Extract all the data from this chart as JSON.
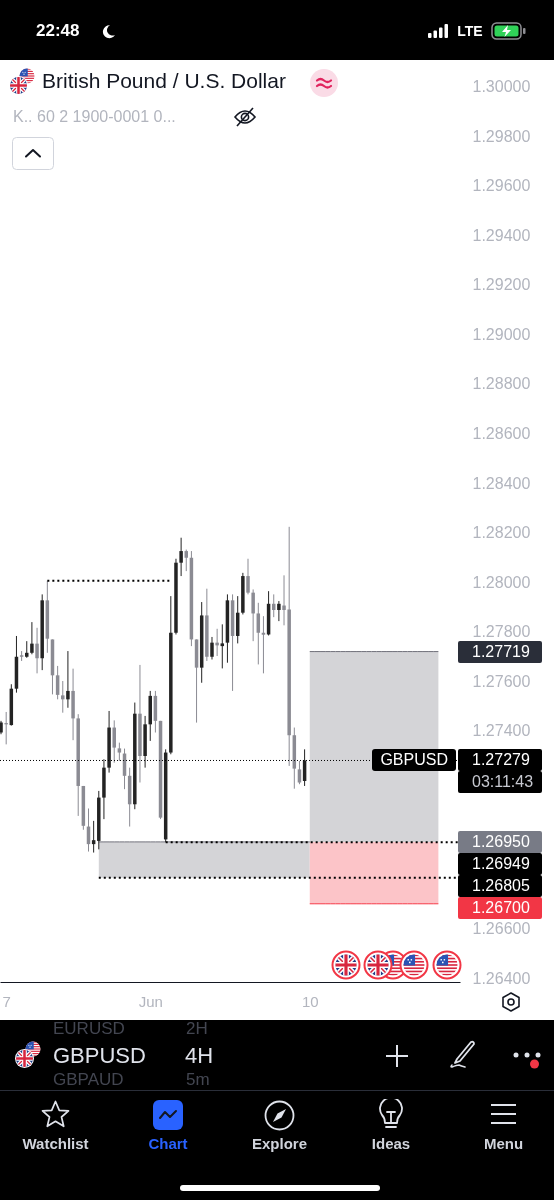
{
  "chart_data": {
    "type": "candlestick",
    "title": "British Pound / U.S. Dollar",
    "subtitle": "K.. 60 2 1900-0001 0...",
    "categories": [
      null,
      "7",
      null,
      null,
      null,
      null,
      null,
      null,
      null,
      null,
      null,
      null,
      null,
      null,
      null,
      null,
      null,
      null,
      null,
      null,
      null,
      null,
      null,
      null,
      null,
      null,
      null,
      null,
      null,
      "Jun",
      null,
      null,
      null,
      null,
      null,
      null,
      null,
      null,
      null,
      null,
      null,
      null,
      null,
      null,
      null,
      null,
      null,
      null,
      null,
      null,
      null,
      null,
      null,
      null,
      null,
      null,
      null,
      null,
      null,
      null,
      "10",
      null,
      null,
      null,
      null,
      null,
      null,
      null,
      null,
      null,
      null,
      null,
      null,
      null,
      null,
      null,
      null,
      null,
      null,
      null,
      null,
      null,
      null,
      null,
      null,
      null,
      null,
      null,
      null,
      null
    ],
    "ohlc": [
      [
        1.27392,
        1.27439,
        1.27385,
        1.27432
      ],
      [
        1.2743,
        1.27475,
        1.27344,
        1.27425
      ],
      [
        1.27422,
        1.27587,
        1.2742,
        1.27569
      ],
      [
        1.27569,
        1.27782,
        1.27553,
        1.27698
      ],
      [
        1.27704,
        1.27721,
        1.27681,
        1.27698
      ],
      [
        1.27698,
        1.27761,
        1.27694,
        1.27714
      ],
      [
        1.27714,
        1.27838,
        1.27708,
        1.27751
      ],
      [
        1.27751,
        1.27815,
        1.27631,
        1.27692
      ],
      [
        1.27692,
        1.2795,
        1.27644,
        1.27926
      ],
      [
        1.27926,
        1.28005,
        1.27714,
        1.27771
      ],
      [
        1.27768,
        1.27768,
        1.27546,
        1.27623
      ],
      [
        1.27623,
        1.27661,
        1.27526,
        1.27544
      ],
      [
        1.27542,
        1.276,
        1.27472,
        1.27526
      ],
      [
        1.27526,
        1.27721,
        1.27492,
        1.2756
      ],
      [
        1.2756,
        1.2765,
        1.27361,
        1.27449
      ],
      [
        1.27449,
        1.27466,
        1.27055,
        1.27176
      ],
      [
        1.27176,
        1.27176,
        1.26999,
        1.27015
      ],
      [
        1.27012,
        1.27085,
        1.26911,
        1.26941
      ],
      [
        1.26941,
        1.27035,
        1.26907,
        1.26957
      ],
      [
        1.26954,
        1.27156,
        1.2692,
        1.27129
      ],
      [
        1.27129,
        1.27284,
        1.27042,
        1.2725
      ],
      [
        1.2725,
        1.27479,
        1.2723,
        1.27412
      ],
      [
        1.27412,
        1.27441,
        1.2727,
        1.27331
      ],
      [
        1.27328,
        1.27351,
        1.27277,
        1.27311
      ],
      [
        1.27307,
        1.27327,
        1.27163,
        1.27217
      ],
      [
        1.27217,
        1.2725,
        1.27012,
        1.27102
      ],
      [
        1.27102,
        1.27513,
        1.27082,
        1.27468
      ],
      [
        1.27468,
        1.27665,
        1.2719,
        1.27297
      ],
      [
        1.27297,
        1.27459,
        1.2725,
        1.27425
      ],
      [
        1.27425,
        1.2756,
        1.27358,
        1.2754
      ],
      [
        1.2754,
        1.2756,
        1.27392,
        1.27439
      ],
      [
        1.27439,
        1.27439,
        1.27042,
        1.27048
      ],
      [
        1.2696,
        1.27324,
        1.26949,
        1.27311
      ],
      [
        1.27311,
        1.27943,
        1.27304,
        1.27795
      ],
      [
        1.27795,
        1.28094,
        1.27788,
        1.28078
      ],
      [
        1.28078,
        1.28179,
        1.28024,
        1.28125
      ],
      [
        1.28125,
        1.28131,
        1.28044,
        1.28098
      ],
      [
        1.28098,
        1.28125,
        1.27741,
        1.27768
      ],
      [
        1.27768,
        1.27768,
        1.27432,
        1.27654
      ],
      [
        1.27654,
        1.27919,
        1.27593,
        1.27865
      ],
      [
        1.27865,
        1.27973,
        1.27681,
        1.27698
      ],
      [
        1.27698,
        1.27778,
        1.27687,
        1.27755
      ],
      [
        1.27755,
        1.27811,
        1.27701,
        1.27744
      ],
      [
        1.27741,
        1.27829,
        1.27651,
        1.27752
      ],
      [
        1.27755,
        1.2795,
        1.27674,
        1.27926
      ],
      [
        1.27926,
        1.2795,
        1.2756,
        1.27782
      ],
      [
        1.27782,
        1.27943,
        1.27752,
        1.27876
      ],
      [
        1.27876,
        1.28037,
        1.27869,
        1.28024
      ],
      [
        1.28024,
        1.28094,
        1.2795,
        1.27957
      ],
      [
        1.27957,
        1.2797,
        1.27761,
        1.27873
      ],
      [
        1.27873,
        1.27916,
        1.27667,
        1.27795
      ],
      [
        1.27795,
        1.27862,
        1.27631,
        1.27787
      ],
      [
        1.27788,
        1.27963,
        1.27784,
        1.27912
      ],
      [
        1.27912,
        1.2795,
        1.27858,
        1.27887
      ],
      [
        1.27887,
        1.27923,
        1.27842,
        1.27912
      ],
      [
        1.27905,
        1.28027,
        1.27825,
        1.27887
      ],
      [
        1.27889,
        1.28223,
        1.27257,
        1.27381
      ],
      [
        1.27381,
        1.27412,
        1.27165,
        1.27246
      ],
      [
        1.27243,
        1.27277,
        1.27183,
        1.2719
      ],
      [
        1.27196,
        1.27324,
        1.27176,
        1.27279
      ],
      null,
      null,
      null,
      null,
      null,
      null,
      null,
      null,
      null,
      null,
      null,
      null,
      null,
      null,
      null,
      null,
      null,
      null,
      null,
      null,
      null,
      null,
      null,
      null,
      null,
      null,
      null,
      null,
      null,
      null
    ],
    "colors": [
      "#232323",
      "#8b8b93",
      "#232323",
      "#232323",
      "#8b8b93",
      "#232323",
      "#232323",
      "#8b8b93",
      "#232323",
      "#8b8b93",
      "#8b8b93",
      "#8b8b93",
      "#8b8b93",
      "#232323",
      "#8b8b93",
      "#8b8b93",
      "#8b8b93",
      "#8b8b93",
      "#232323",
      "#232323",
      "#232323",
      "#232323",
      "#8b8b93",
      "#8b8b93",
      "#8b8b93",
      "#8b8b93",
      "#232323",
      "#8b8b93",
      "#232323",
      "#232323",
      "#8b8b93",
      "#8b8b93",
      "#232323",
      "#232323",
      "#232323",
      "#232323",
      "#8b8b93",
      "#8b8b93",
      "#8b8b93",
      "#232323",
      "#8b8b93",
      "#232323",
      "#8b8b93",
      "#232323",
      "#232323",
      "#8b8b93",
      "#232323",
      "#232323",
      "#8b8b93",
      "#8b8b93",
      "#8b8b93",
      "#8b8b93",
      "#232323",
      "#8b8b93",
      "#232323",
      "#8b8b93",
      "#8b8b93",
      "#8b8b93",
      "#8b8b93",
      "#232323",
      null,
      null,
      null,
      null,
      null,
      null,
      null,
      null,
      null,
      null,
      null,
      null,
      null,
      null,
      null,
      null,
      null,
      null,
      null,
      null,
      null,
      null,
      null,
      null,
      null,
      null,
      null,
      null,
      null,
      null
    ],
    "series": [
      {
        "type": "line",
        "color": "#70707a",
        "values": [
          null,
          null,
          null,
          null,
          null,
          null,
          null,
          null,
          null,
          null,
          null,
          null,
          null,
          null,
          null,
          null,
          null,
          null,
          null,
          1.2695,
          1.2695,
          1.2695,
          1.2695,
          1.2695,
          1.2695,
          1.2695,
          1.2695,
          1.2695,
          1.2695,
          1.2695,
          1.2695,
          1.2695,
          1.2695,
          1.2695,
          1.2695,
          1.2695,
          1.2695,
          1.2695,
          1.2695,
          1.2695,
          1.2695,
          1.2695,
          1.2695,
          1.2695,
          1.2695,
          1.2695,
          1.2695,
          1.2695,
          1.2695,
          1.2695,
          1.2695,
          1.2695,
          1.2695,
          1.2695,
          1.2695,
          1.2695,
          1.2695,
          1.2695,
          1.2695,
          1.2695,
          1.2695,
          null,
          null,
          null,
          null,
          null,
          null,
          null,
          null,
          null,
          null,
          null,
          null,
          null,
          null,
          null,
          null,
          null,
          null,
          null,
          null,
          null,
          null,
          null,
          null,
          null,
          null,
          null,
          null,
          null
        ],
        "upper": [
          null,
          null,
          null,
          null,
          null,
          null,
          null,
          null,
          null,
          null,
          null,
          null,
          null,
          null,
          null,
          null,
          null,
          null,
          null,
          1.2695,
          1.2695,
          1.2695,
          1.2695,
          1.2695,
          1.2695,
          1.2695,
          1.2695,
          1.2695,
          1.2695,
          1.2695,
          1.2695,
          1.2695,
          1.2695,
          1.2695,
          1.2695,
          1.2695,
          1.2695,
          1.2695,
          1.2695,
          1.2695,
          1.2695,
          1.2695,
          1.2695,
          1.2695,
          1.2695,
          1.2695,
          1.2695,
          1.2695,
          1.2695,
          1.2695,
          1.2695,
          1.2695,
          1.2695,
          1.2695,
          1.2695,
          1.2695,
          1.2695,
          1.2695,
          1.2695,
          1.2695,
          1.2695,
          null,
          null,
          null,
          null,
          null,
          null,
          null,
          null,
          null,
          null,
          null,
          null,
          null,
          null,
          null,
          null,
          null,
          null,
          null,
          null,
          null,
          null,
          null,
          null,
          null,
          null,
          null,
          null,
          null
        ],
        "lower": [
          null,
          null,
          null,
          null,
          null,
          null,
          null,
          null,
          null,
          null,
          null,
          null,
          null,
          null,
          null,
          null,
          null,
          null,
          null,
          1.26805,
          1.26805,
          1.26805,
          1.26805,
          1.26805,
          1.26805,
          1.26805,
          1.26805,
          1.26805,
          1.26805,
          1.26805,
          1.26805,
          1.26805,
          1.26805,
          1.26805,
          1.26805,
          1.26805,
          1.26805,
          1.26805,
          1.26805,
          1.26805,
          1.26805,
          1.26805,
          1.26805,
          1.26805,
          1.26805,
          1.26805,
          1.26805,
          1.26805,
          1.26805,
          1.26805,
          1.26805,
          1.26805,
          1.26805,
          1.26805,
          1.26805,
          1.26805,
          1.26805,
          1.26805,
          1.26805,
          1.26805,
          1.26805,
          null,
          null,
          null,
          null,
          null,
          null,
          null,
          null,
          null,
          null,
          null,
          null,
          null,
          null,
          null,
          null,
          null,
          null,
          null,
          null,
          null,
          null,
          null,
          null,
          null,
          null,
          null,
          null,
          null
        ]
      },
      {
        "type": "line",
        "color": "#70707a",
        "values": [
          null,
          null,
          null,
          null,
          null,
          null,
          null,
          null,
          null,
          null,
          null,
          null,
          null,
          null,
          null,
          null,
          null,
          null,
          null,
          null,
          null,
          null,
          null,
          null,
          null,
          null,
          null,
          null,
          null,
          null,
          null,
          null,
          null,
          null,
          null,
          null,
          null,
          null,
          null,
          null,
          null,
          null,
          null,
          null,
          null,
          null,
          null,
          null,
          null,
          null,
          null,
          null,
          null,
          null,
          null,
          null,
          null,
          null,
          null,
          null,
          1.27719,
          1.27719,
          1.27719,
          1.27719,
          1.27719,
          1.27719,
          1.27719,
          1.27719,
          1.27719,
          1.27719,
          1.27719,
          1.27719,
          1.27719,
          1.27719,
          1.27719,
          1.27719,
          1.27719,
          1.27719,
          1.27719,
          1.27719,
          1.27719,
          1.27719,
          1.27719,
          1.27719,
          1.27719,
          1.27719,
          null,
          null,
          null,
          null
        ],
        "upper": [
          null,
          null,
          null,
          null,
          null,
          null,
          null,
          null,
          null,
          null,
          null,
          null,
          null,
          null,
          null,
          null,
          null,
          null,
          null,
          null,
          null,
          null,
          null,
          null,
          null,
          null,
          null,
          null,
          null,
          null,
          null,
          null,
          null,
          null,
          null,
          null,
          null,
          null,
          null,
          null,
          null,
          null,
          null,
          null,
          null,
          null,
          null,
          null,
          null,
          null,
          null,
          null,
          null,
          null,
          null,
          null,
          null,
          null,
          null,
          null,
          1.27719,
          1.27719,
          1.27719,
          1.27719,
          1.27719,
          1.27719,
          1.27719,
          1.27719,
          1.27719,
          1.27719,
          1.27719,
          1.27719,
          1.27719,
          1.27719,
          1.27719,
          1.27719,
          1.27719,
          1.27719,
          1.27719,
          1.27719,
          1.27719,
          1.27719,
          1.27719,
          1.27719,
          1.27719,
          1.27719,
          null,
          null,
          null,
          null
        ],
        "lower": [
          null,
          null,
          null,
          null,
          null,
          null,
          null,
          null,
          null,
          null,
          null,
          null,
          null,
          null,
          null,
          null,
          null,
          null,
          null,
          null,
          null,
          null,
          null,
          null,
          null,
          null,
          null,
          null,
          null,
          null,
          null,
          null,
          null,
          null,
          null,
          null,
          null,
          null,
          null,
          null,
          null,
          null,
          null,
          null,
          null,
          null,
          null,
          null,
          null,
          null,
          null,
          null,
          null,
          null,
          null,
          null,
          null,
          null,
          null,
          null,
          1.2695,
          1.2695,
          1.2695,
          1.2695,
          1.2695,
          1.2695,
          1.2695,
          1.2695,
          1.2695,
          1.2695,
          1.2695,
          1.2695,
          1.2695,
          1.2695,
          1.2695,
          1.2695,
          1.2695,
          1.2695,
          1.2695,
          1.2695,
          1.2695,
          1.2695,
          1.2695,
          1.2695,
          1.2695,
          1.2695,
          null,
          null,
          null,
          null
        ]
      },
      {
        "type": "line",
        "color": "#f53a48",
        "values": [
          null,
          null,
          null,
          null,
          null,
          null,
          null,
          null,
          null,
          null,
          null,
          null,
          null,
          null,
          null,
          null,
          null,
          null,
          null,
          null,
          null,
          null,
          null,
          null,
          null,
          null,
          null,
          null,
          null,
          null,
          null,
          null,
          null,
          null,
          null,
          null,
          null,
          null,
          null,
          null,
          null,
          null,
          null,
          null,
          null,
          null,
          null,
          null,
          null,
          null,
          null,
          null,
          null,
          null,
          null,
          null,
          null,
          null,
          null,
          null,
          1.267,
          1.267,
          1.267,
          1.267,
          1.267,
          1.267,
          1.267,
          1.267,
          1.267,
          1.267,
          1.267,
          1.267,
          1.267,
          1.267,
          1.267,
          1.267,
          1.267,
          1.267,
          1.267,
          1.267,
          1.267,
          1.267,
          1.267,
          1.267,
          1.267,
          1.267,
          null,
          null,
          null,
          null
        ],
        "upper": [
          null,
          null,
          null,
          null,
          null,
          null,
          null,
          null,
          null,
          null,
          null,
          null,
          null,
          null,
          null,
          null,
          null,
          null,
          null,
          null,
          null,
          null,
          null,
          null,
          null,
          null,
          null,
          null,
          null,
          null,
          null,
          null,
          null,
          null,
          null,
          null,
          null,
          null,
          null,
          null,
          null,
          null,
          null,
          null,
          null,
          null,
          null,
          null,
          null,
          null,
          null,
          null,
          null,
          null,
          null,
          null,
          null,
          null,
          null,
          null,
          1.2695,
          1.2695,
          1.2695,
          1.2695,
          1.2695,
          1.2695,
          1.2695,
          1.2695,
          1.2695,
          1.2695,
          1.2695,
          1.2695,
          1.2695,
          1.2695,
          1.2695,
          1.2695,
          1.2695,
          1.2695,
          1.2695,
          1.2695,
          1.2695,
          1.2695,
          1.2695,
          1.2695,
          1.2695,
          1.2695,
          null,
          null,
          null,
          null
        ],
        "lower": [
          null,
          null,
          null,
          null,
          null,
          null,
          null,
          null,
          null,
          null,
          null,
          null,
          null,
          null,
          null,
          null,
          null,
          null,
          null,
          null,
          null,
          null,
          null,
          null,
          null,
          null,
          null,
          null,
          null,
          null,
          null,
          null,
          null,
          null,
          null,
          null,
          null,
          null,
          null,
          null,
          null,
          null,
          null,
          null,
          null,
          null,
          null,
          null,
          null,
          null,
          null,
          null,
          null,
          null,
          null,
          null,
          null,
          null,
          null,
          null,
          1.267,
          1.267,
          1.267,
          1.267,
          1.267,
          1.267,
          1.267,
          1.267,
          1.267,
          1.267,
          1.267,
          1.267,
          1.267,
          1.267,
          1.267,
          1.267,
          1.267,
          1.267,
          1.267,
          1.267,
          1.267,
          1.267,
          1.267,
          1.267,
          1.267,
          1.267,
          null,
          null,
          null,
          null
        ]
      },
      {
        "type": "line",
        "color": "#000000",
        "line_style": "dotted",
        "values": [
          null,
          null,
          null,
          null,
          null,
          null,
          null,
          null,
          null,
          1.28005,
          1.28005,
          1.28005,
          1.28005,
          1.28005,
          1.28005,
          1.28005,
          1.28005,
          1.28005,
          1.28005,
          1.28005,
          1.28005,
          1.28005,
          1.28005,
          1.28005,
          1.28005,
          1.28005,
          1.28005,
          1.28005,
          1.28005,
          1.28005,
          1.28005,
          1.28005,
          1.28005,
          1.28005,
          null,
          null,
          null,
          null,
          null,
          null,
          null,
          null,
          null,
          null,
          null,
          null,
          null,
          null,
          null,
          null,
          null,
          null,
          null,
          null,
          null,
          null,
          null,
          null,
          null,
          null,
          null,
          null,
          null,
          null,
          null,
          null,
          null,
          null,
          null,
          null,
          null,
          null,
          null,
          null,
          null,
          null,
          null,
          null,
          null,
          null,
          null,
          null,
          null,
          null,
          null,
          null,
          null,
          null,
          null,
          null
        ]
      },
      {
        "type": "line",
        "color": "#000000",
        "line_style": "dotted",
        "values": [
          null,
          null,
          null,
          null,
          null,
          null,
          null,
          null,
          null,
          null,
          null,
          null,
          null,
          null,
          null,
          null,
          null,
          null,
          null,
          null,
          null,
          null,
          null,
          null,
          null,
          null,
          null,
          null,
          null,
          null,
          null,
          null,
          1.26949,
          1.26949,
          1.26949,
          1.26949,
          1.26949,
          1.26949,
          1.26949,
          1.26949,
          1.26949,
          1.26949,
          1.26949,
          1.26949,
          1.26949,
          1.26949,
          1.26949,
          1.26949,
          1.26949,
          1.26949,
          1.26949,
          1.26949,
          1.26949,
          1.26949,
          1.26949,
          1.26949,
          1.26949,
          1.26949,
          1.26949,
          1.26949,
          1.26949,
          1.26949,
          1.26949,
          1.26949,
          1.26949,
          1.26949,
          1.26949,
          1.26949,
          1.26949,
          1.26949,
          1.26949,
          1.26949,
          1.26949,
          1.26949,
          1.26949,
          1.26949,
          1.26949,
          1.26949,
          1.26949,
          1.26949,
          1.26949,
          1.26949,
          1.26949,
          1.26949,
          1.26949,
          1.26949,
          1.26949,
          1.26949,
          1.26949,
          1.26949
        ]
      },
      {
        "type": "line",
        "color": "#000000",
        "line_style": "dotted",
        "values": [
          null,
          null,
          null,
          null,
          null,
          null,
          null,
          null,
          null,
          null,
          null,
          null,
          null,
          null,
          null,
          null,
          null,
          null,
          null,
          1.26805,
          1.26805,
          1.26805,
          1.26805,
          1.26805,
          1.26805,
          1.26805,
          1.26805,
          1.26805,
          1.26805,
          1.26805,
          1.26805,
          1.26805,
          1.26805,
          1.26805,
          1.26805,
          1.26805,
          1.26805,
          1.26805,
          1.26805,
          1.26805,
          1.26805,
          1.26805,
          1.26805,
          1.26805,
          1.26805,
          1.26805,
          1.26805,
          1.26805,
          1.26805,
          1.26805,
          1.26805,
          1.26805,
          1.26805,
          1.26805,
          1.26805,
          1.26805,
          1.26805,
          1.26805,
          1.26805,
          1.26805,
          1.26805,
          1.26805,
          1.26805,
          1.26805,
          1.26805,
          1.26805,
          1.26805,
          1.26805,
          1.26805,
          1.26805,
          1.26805,
          1.26805,
          1.26805,
          1.26805,
          1.26805,
          1.26805,
          1.26805,
          1.26805,
          1.26805,
          1.26805,
          1.26805,
          1.26805,
          1.26805,
          1.26805,
          1.26805,
          1.26805,
          1.26805,
          1.26805,
          1.26805,
          1.26805
        ]
      }
    ],
    "ref_lines": [
      {
        "axis": "y",
        "value": 1.27279,
        "label": "1.27279",
        "color": "#000000",
        "line_style": "dotted"
      }
    ],
    "ylim": [
      1.26384,
      1.30109
    ],
    "yticks": [
      {
        "value": 1.3,
        "label": "1.30000"
      },
      {
        "value": 1.298,
        "label": "1.29800"
      },
      {
        "value": 1.296,
        "label": "1.29600"
      },
      {
        "value": 1.294,
        "label": "1.29400"
      },
      {
        "value": 1.292,
        "label": "1.29200"
      },
      {
        "value": 1.29,
        "label": "1.29000"
      },
      {
        "value": 1.288,
        "label": "1.28800"
      },
      {
        "value": 1.286,
        "label": "1.28600"
      },
      {
        "value": 1.284,
        "label": "1.28400"
      },
      {
        "value": 1.282,
        "label": "1.28200"
      },
      {
        "value": 1.28,
        "label": "1.28000"
      },
      {
        "value": 1.278,
        "label": "1.27800"
      },
      {
        "value": 1.276,
        "label": "1.27600"
      },
      {
        "value": 1.274,
        "label": "1.27400"
      },
      {
        "value": 1.266,
        "label": "1.26600"
      },
      {
        "value": 1.264,
        "label": "1.26400"
      }
    ],
    "annotations": [
      "1.27719",
      "03:11:43",
      "1.26950",
      "1.26949",
      "1.26805",
      "1.26700",
      "GBPUSD",
      "22:48",
      "LTE",
      "EURUSD",
      "2H",
      "GBPUSD",
      "4H",
      "GBPAUD",
      "5m",
      "Watchlist",
      "Chart",
      "Explore",
      "Ideas",
      "Menu"
    ]
  }
}
